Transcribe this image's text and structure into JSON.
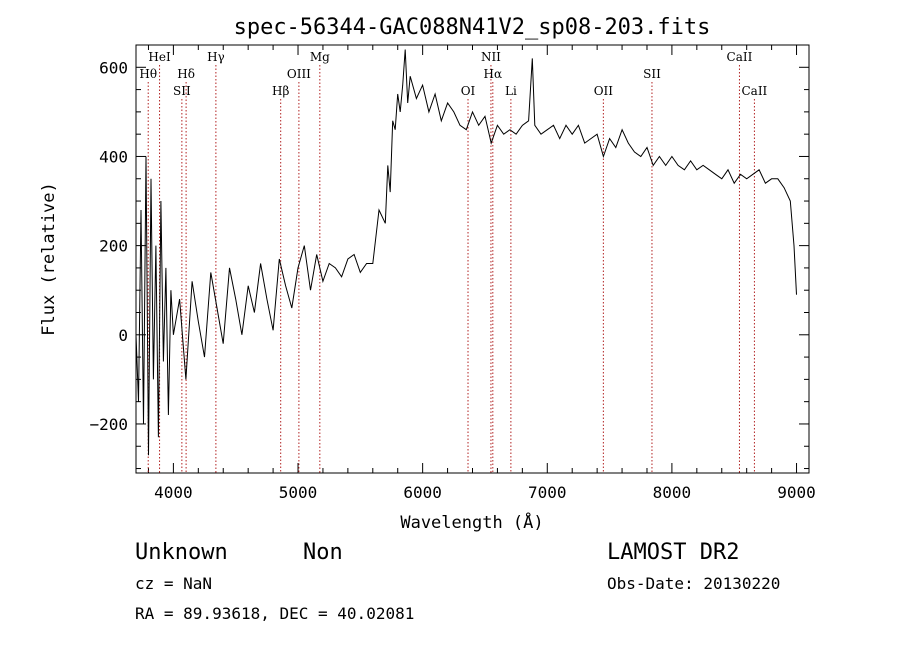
{
  "chart_data": {
    "type": "line",
    "title": "spec-56344-GAC088N41V2_sp08-203.fits",
    "xlabel": "Wavelength (Å)",
    "ylabel": "Flux (relative)",
    "xlim": [
      3700,
      9100
    ],
    "ylim": [
      -310,
      650
    ],
    "xticks": [
      4000,
      5000,
      6000,
      7000,
      8000,
      9000
    ],
    "yticks": [
      -200,
      0,
      200,
      400,
      600
    ],
    "grid": false,
    "line_color": "#000000",
    "marker_color": "#b22222",
    "series": [
      {
        "x": [
          3700,
          3720,
          3740,
          3760,
          3780,
          3800,
          3820,
          3840,
          3860,
          3880,
          3900,
          3920,
          3940,
          3960,
          3980,
          4000,
          4050,
          4100,
          4150,
          4200,
          4250,
          4300,
          4350,
          4400,
          4450,
          4500,
          4550,
          4600,
          4650,
          4700,
          4750,
          4800,
          4850,
          4900,
          4950,
          5000,
          5050,
          5100,
          5150,
          5200,
          5250,
          5300,
          5350,
          5400,
          5450,
          5500,
          5550,
          5600,
          5650,
          5700,
          5720,
          5740,
          5760,
          5780,
          5800,
          5820,
          5840,
          5860,
          5880,
          5900,
          5950,
          6000,
          6050,
          6100,
          6150,
          6200,
          6250,
          6300,
          6350,
          6400,
          6450,
          6500,
          6550,
          6600,
          6650,
          6700,
          6750,
          6800,
          6850,
          6880,
          6900,
          6950,
          7000,
          7050,
          7100,
          7150,
          7200,
          7250,
          7300,
          7350,
          7400,
          7450,
          7500,
          7550,
          7600,
          7650,
          7700,
          7750,
          7800,
          7850,
          7900,
          7950,
          8000,
          8050,
          8100,
          8150,
          8200,
          8250,
          8300,
          8350,
          8400,
          8450,
          8500,
          8550,
          8600,
          8650,
          8700,
          8750,
          8800,
          8850,
          8900,
          8950,
          8980,
          9000
        ],
        "y": [
          0,
          -150,
          280,
          -200,
          400,
          -270,
          350,
          -100,
          200,
          -230,
          300,
          -60,
          150,
          -180,
          100,
          0,
          80,
          -100,
          120,
          30,
          -50,
          140,
          60,
          -20,
          150,
          80,
          0,
          110,
          50,
          160,
          80,
          10,
          170,
          110,
          60,
          150,
          200,
          100,
          180,
          120,
          160,
          150,
          130,
          170,
          180,
          140,
          160,
          160,
          280,
          250,
          380,
          320,
          480,
          460,
          540,
          500,
          560,
          640,
          520,
          580,
          530,
          560,
          500,
          540,
          480,
          520,
          500,
          470,
          460,
          500,
          470,
          490,
          430,
          470,
          450,
          460,
          450,
          470,
          480,
          620,
          470,
          450,
          460,
          470,
          440,
          470,
          450,
          470,
          430,
          440,
          450,
          400,
          440,
          420,
          460,
          430,
          410,
          400,
          420,
          380,
          400,
          380,
          400,
          380,
          370,
          390,
          370,
          380,
          370,
          360,
          350,
          370,
          340,
          360,
          350,
          360,
          370,
          340,
          350,
          350,
          330,
          300,
          200,
          90
        ]
      }
    ],
    "line_markers": [
      {
        "label": "Hθ",
        "x": 3798,
        "row": 2
      },
      {
        "label": "HeI",
        "x": 3889,
        "row": 1
      },
      {
        "label": "SII",
        "x": 4068,
        "row": 3
      },
      {
        "label": "Hδ",
        "x": 4102,
        "row": 2
      },
      {
        "label": "Hγ",
        "x": 4341,
        "row": 1
      },
      {
        "label": "Hβ",
        "x": 4861,
        "row": 3
      },
      {
        "label": "OIII",
        "x": 5007,
        "row": 2
      },
      {
        "label": "Mg",
        "x": 5175,
        "row": 1
      },
      {
        "label": "OI",
        "x": 6364,
        "row": 3
      },
      {
        "label": "NII",
        "x": 6548,
        "row": 1
      },
      {
        "label": "Hα",
        "x": 6563,
        "row": 2
      },
      {
        "label": "Li",
        "x": 6708,
        "row": 3
      },
      {
        "label": "OII",
        "x": 7450,
        "row": 3
      },
      {
        "label": "SII",
        "x": 7840,
        "row": 2
      },
      {
        "label": "CaII",
        "x": 8542,
        "row": 1
      },
      {
        "label": "CaII",
        "x": 8662,
        "row": 3
      }
    ]
  },
  "footer": {
    "object_class": "Unknown",
    "subclass": "Non",
    "survey": "LAMOST DR2",
    "cz": "cz = NaN",
    "obs_date": "Obs-Date: 20130220",
    "coords": "RA =  89.93618, DEC =  40.02081"
  }
}
